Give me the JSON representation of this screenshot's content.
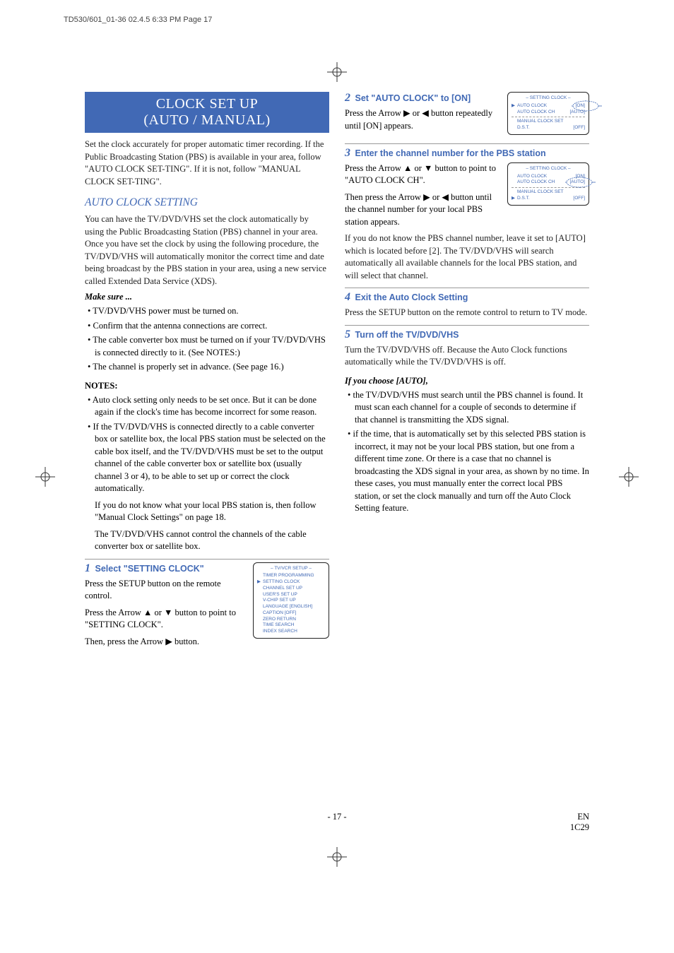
{
  "meta": {
    "page_stamp": "TD530/601_01-36  02.4.5 6:33 PM  Page 17"
  },
  "colors": {
    "accent": "#4169b5",
    "text": "#222222",
    "rule": "#999999"
  },
  "banner": {
    "line1": "CLOCK SET UP",
    "line2": "(AUTO / MANUAL)"
  },
  "left": {
    "intro": "Set the clock accurately for proper automatic timer recording. If the Public Broadcasting Station (PBS) is available in your area, follow \"AUTO CLOCK SET-TING\". If it is not, follow \"MANUAL CLOCK SET-TING\".",
    "h2": "AUTO CLOCK SETTING",
    "auto_para": "You can have the TV/DVD/VHS set the clock automatically by using the Public Broadcasting Station (PBS) channel in your area. Once you have set the clock by using the following procedure, the TV/DVD/VHS will automatically monitor the correct time and date being broadcast by the PBS station in your area, using a new service called Extended Data Service (XDS).",
    "makesure_h": "Make sure ...",
    "makesure": [
      "TV/DVD/VHS power must be turned on.",
      "Confirm that the antenna connections are correct.",
      "The cable converter box must be turned on if your TV/DVD/VHS is connected directly to it. (See NOTES:)",
      "The channel is properly set in advance. (See page 16.)"
    ],
    "notes_h": "NOTES:",
    "notes": [
      "Auto clock setting only needs to be set once. But it can be done again if the clock's time has become incorrect for some reason.",
      "If the TV/DVD/VHS is connected directly to a cable converter box or satellite box, the local PBS station must be selected on the cable box itself, and the TV/DVD/VHS must be set to the output channel of the cable converter box or satellite box (usually channel 3 or 4), to be able to set up or correct the clock automatically."
    ],
    "notes_tail1": "If you do not know what your local PBS station is, then follow \"Manual Clock Settings\" on page 18.",
    "notes_tail2": "The TV/DVD/VHS cannot control the channels of the cable converter box or satellite box.",
    "step1_head": "Select \"SETTING CLOCK\"",
    "step1_body_a": "Press the SETUP button on the remote control.",
    "step1_body_b": "Press the Arrow ▲ or ▼ button to point to \"SETTING CLOCK\".",
    "step1_body_c": "Then, press the Arrow ▶ button."
  },
  "right": {
    "step2_head": "Set \"AUTO CLOCK\" to [ON]",
    "step2_body": "Press the Arrow ▶ or ◀ button repeatedly until [ON] appears.",
    "step3_head": "Enter the channel number for the PBS station",
    "step3_body_a": "Press the Arrow ▲ or ▼ button to point to \"AUTO CLOCK CH\".",
    "step3_body_b": "Then press the Arrow ▶ or ◀ button until the channel number for your local PBS station appears.",
    "step3_para": "If you do not know the PBS channel number, leave it set to [AUTO] which is located before [2]. The TV/DVD/VHS will search automatically all available channels for the local PBS station, and will select that channel.",
    "step4_head": "Exit the Auto Clock Setting",
    "step4_body": "Press the SETUP button on the remote control to return to TV mode.",
    "step5_head": "Turn off the TV/DVD/VHS",
    "step5_body": "Turn the TV/DVD/VHS off. Because the Auto Clock functions automatically while the TV/DVD/VHS is off.",
    "choose_h": "If you choose [AUTO],",
    "choose": [
      "the TV/DVD/VHS must search until the PBS channel is found. It must scan each channel for a couple of seconds to determine if that channel is transmitting the XDS signal.",
      "if the time, that is automatically set by this selected PBS station is incorrect, it may not be your local PBS station, but one from a different time zone. Or there is a case that no channel is broadcasting the XDS signal in your area, as shown by no time. In these cases, you must manually enter the correct local PBS station, or set the clock manually and turn off the Auto Clock Setting feature."
    ]
  },
  "osd1": {
    "title": "– TV/VCR SETUP –",
    "items": [
      "TIMER PROGRAMMING",
      "SETTING CLOCK",
      "CHANNEL SET UP",
      "USER'S SET UP",
      "V-CHIP SET UP",
      "LANGUAGE [ENGLISH]",
      "CAPTION  [OFF]",
      "ZERO RETURN",
      "TIME SEARCH",
      "INDEX SEARCH"
    ],
    "pointer_index": 1
  },
  "osd2": {
    "title": "– SETTING CLOCK –",
    "rows": [
      {
        "label": "AUTO CLOCK",
        "value": "[ON]",
        "ptr": true,
        "circled": true
      },
      {
        "label": "AUTO CLOCK CH",
        "value": "[AUTO]"
      },
      {
        "label": "MANUAL CLOCK SET",
        "value": ""
      },
      {
        "label": "D.S.T.",
        "value": "[OFF]"
      }
    ]
  },
  "osd3": {
    "title": "– SETTING CLOCK –",
    "rows": [
      {
        "label": "AUTO CLOCK",
        "value": "[ON]"
      },
      {
        "label": "AUTO CLOCK CH",
        "value": "[AUTO]",
        "circled": true
      },
      {
        "label": "MANUAL CLOCK SET",
        "value": ""
      },
      {
        "label": "D.S.T.",
        "value": "[OFF]",
        "ptr": true
      }
    ]
  },
  "footer": {
    "center": "- 17 -",
    "right1": "EN",
    "right2": "1C29"
  }
}
